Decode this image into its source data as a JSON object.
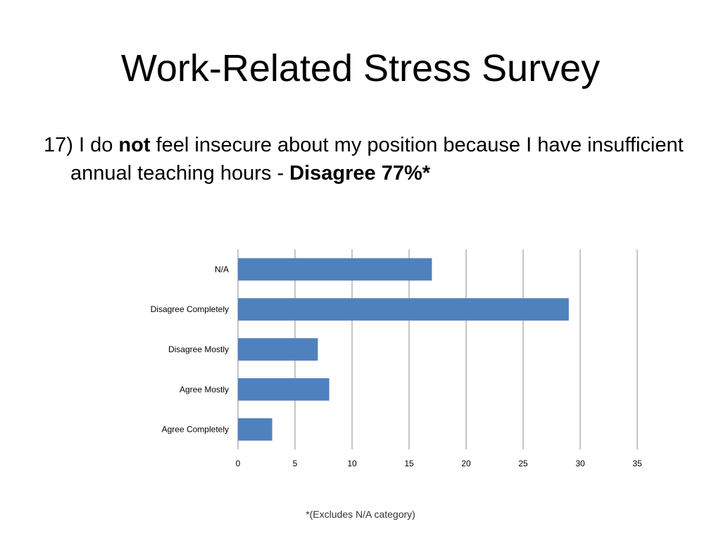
{
  "slide": {
    "title": "Work-Related Stress Survey",
    "question_prefix": "17) I do ",
    "question_emphasis": "not",
    "question_middle": " feel insecure about my position because I have insufficient annual teaching hours - ",
    "question_result": "Disagree 77%*",
    "footnote": "*(Excludes N/A category)"
  },
  "chart_data": {
    "type": "bar",
    "orientation": "horizontal",
    "categories": [
      "N/A",
      "Disagree Completely",
      "Disagree Mostly",
      "Agree Mostly",
      "Agree Completely"
    ],
    "values": [
      17,
      29,
      7,
      8,
      3
    ],
    "xlim": [
      0,
      35
    ],
    "xticks": [
      0,
      5,
      10,
      15,
      20,
      25,
      30,
      35
    ],
    "grid": true,
    "legend": "none",
    "bar_color": "#4F81BD",
    "grid_color": "#8C8C8C"
  }
}
